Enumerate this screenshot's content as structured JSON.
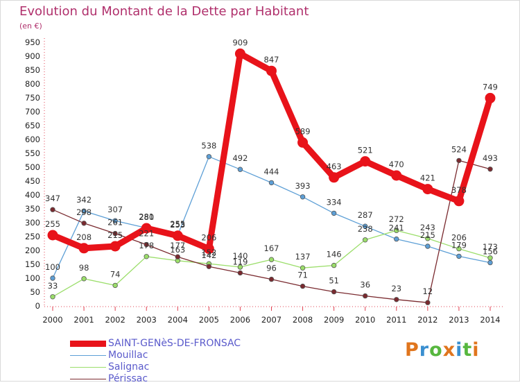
{
  "chart_data": {
    "type": "line",
    "title": "Evolution du Montant de la Dette par Habitant",
    "unit_label": "(en €)",
    "x": [
      "2000",
      "2001",
      "2002",
      "2003",
      "2004",
      "2005",
      "2006",
      "2007",
      "2008",
      "2009",
      "2010",
      "2011",
      "2012",
      "2013",
      "2014"
    ],
    "y_ticks": [
      0,
      50,
      100,
      150,
      200,
      250,
      300,
      350,
      400,
      450,
      500,
      550,
      600,
      650,
      700,
      750,
      800,
      850,
      900,
      950
    ],
    "ylim": [
      0,
      950
    ],
    "grid": false,
    "legend_position": "bottom-left",
    "series": [
      {
        "name": "SAINT-GENèS-DE-FRONSAC",
        "color": "#e8131a",
        "values": [
          255,
          208,
          215,
          280,
          253,
          206,
          909,
          847,
          589,
          463,
          521,
          470,
          421,
          378,
          749
        ],
        "labels": [
          "255",
          "208",
          "215",
          "280",
          "253",
          "206",
          "909",
          "847",
          "589",
          "463",
          "521",
          "470",
          "421",
          "378",
          "749"
        ]
      },
      {
        "name": "Mouillac",
        "color": "#5d9fd6",
        "values": [
          100,
          342,
          307,
          281,
          255,
          538,
          492,
          444,
          393,
          334,
          287,
          241,
          215,
          179,
          156
        ],
        "labels": [
          "100",
          "342",
          "307",
          "281",
          "255",
          "538",
          "492",
          "444",
          "393",
          "334",
          "287",
          "241",
          "215",
          "179",
          "156"
        ]
      },
      {
        "name": "Salignac",
        "color": "#9bde6a",
        "values": [
          33,
          98,
          74,
          178,
          163,
          152,
          140,
          167,
          137,
          146,
          238,
          272,
          243,
          206,
          173
        ],
        "labels": [
          "33",
          "98",
          "74",
          "178",
          "163",
          "152",
          "140",
          "167",
          "137",
          "146",
          "238",
          "272",
          "243",
          "206",
          "173"
        ]
      },
      {
        "name": "Périssac",
        "color": "#7a2a2f",
        "values": [
          347,
          298,
          261,
          221,
          177,
          142,
          119,
          96,
          71,
          51,
          36,
          23,
          12,
          524,
          493
        ],
        "labels": [
          "347",
          "298",
          "261",
          "221",
          "177",
          "142",
          "119",
          "96",
          "71",
          "51",
          "36",
          "23",
          "12",
          "524",
          "493"
        ]
      }
    ]
  },
  "brand": {
    "text": "Proxiti",
    "colors": [
      "#e0751d",
      "#3a8fd0",
      "#57b73f",
      "#e0751d",
      "#3a8fd0",
      "#57b73f",
      "#e0751d"
    ]
  }
}
